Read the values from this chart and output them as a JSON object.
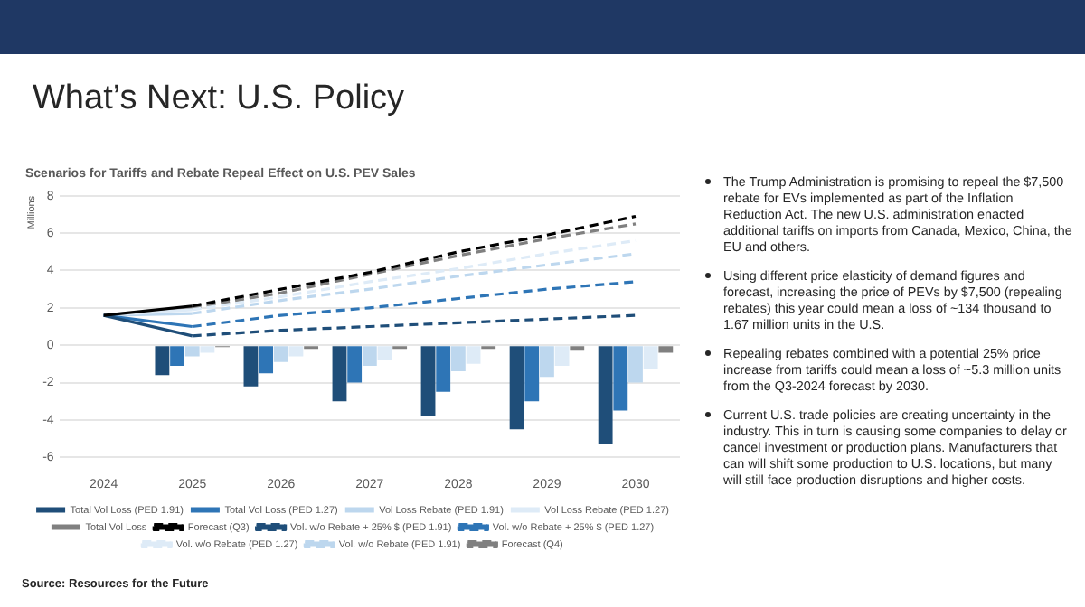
{
  "chart_data": {
    "type": "bar",
    "title": "What’s Next: U.S. Policy",
    "subtitle": "Scenarios for Tariffs and Rebate Repeal Effect on U.S. PEV Sales",
    "ylabel": "Millions",
    "categories": [
      "2024",
      "2025",
      "2026",
      "2027",
      "2028",
      "2029",
      "2030"
    ],
    "series": [
      {
        "name": "Total Vol Loss (PED 1.91)",
        "color": "#1f4e79",
        "values": [
          null,
          -1.6,
          -2.2,
          -3.0,
          -3.8,
          -4.5,
          -5.3
        ]
      },
      {
        "name": "Total Vol Loss (PED 1.27)",
        "color": "#2e75b6",
        "values": [
          null,
          -1.1,
          -1.5,
          -2.0,
          -2.5,
          -3.0,
          -3.5
        ]
      },
      {
        "name": "Vol Loss Rebate (PED 1.91)",
        "color": "#bdd7ee",
        "values": [
          null,
          -0.6,
          -0.9,
          -1.1,
          -1.4,
          -1.7,
          -2.0
        ]
      },
      {
        "name": "Vol Loss Rebate (PED 1.27)",
        "color": "#deebf7",
        "values": [
          null,
          -0.4,
          -0.6,
          -0.8,
          -1.0,
          -1.1,
          -1.3
        ]
      },
      {
        "name": "Total Vol Loss",
        "color": "#808080",
        "values": [
          null,
          -0.1,
          -0.2,
          -0.2,
          -0.2,
          -0.3,
          -0.4
        ]
      },
      {
        "name": "Forecast (Q3)",
        "type": "line",
        "line_style": "dashed",
        "color": "#000000",
        "values": [
          1.6,
          2.1,
          3.0,
          3.9,
          5.0,
          5.9,
          6.9
        ]
      },
      {
        "name": "Vol. w/o Rebate + 25% $ (PED 1.91)",
        "type": "line",
        "line_style": "dashed",
        "color": "#1f4e79",
        "values": [
          1.6,
          0.5,
          0.8,
          1.0,
          1.2,
          1.4,
          1.6
        ]
      },
      {
        "name": "Vol. w/o Rebate + 25% $ (PED 1.27)",
        "type": "line",
        "line_style": "dashed",
        "color": "#2e75b6",
        "values": [
          1.6,
          1.0,
          1.6,
          2.0,
          2.5,
          3.0,
          3.4
        ]
      },
      {
        "name": "Vol. w/o Rebate (PED 1.27)",
        "type": "line",
        "line_style": "dashed",
        "color": "#deebf7",
        "values": [
          1.6,
          1.9,
          2.6,
          3.4,
          4.1,
          4.9,
          5.6
        ]
      },
      {
        "name": "Vol. w/o Rebate (PED 1.91)",
        "type": "line",
        "line_style": "dashed",
        "color": "#bdd7ee",
        "values": [
          1.6,
          1.7,
          2.4,
          3.0,
          3.7,
          4.3,
          4.9
        ]
      },
      {
        "name": "Forecast (Q4)",
        "type": "line",
        "line_style": "dashed",
        "color": "#808080",
        "values": [
          1.6,
          2.0,
          2.8,
          3.8,
          4.8,
          5.7,
          6.5
        ]
      }
    ],
    "ylim": [
      -6,
      8
    ],
    "yticks": [
      -6,
      -4,
      -2,
      0,
      2,
      4,
      6,
      8
    ],
    "grid": "y",
    "legend": "bottom",
    "marker": "none",
    "annotations": [
      "The Trump Administration is promising to repeal the $7,500 rebate for EVs implemented as part of the Inflation Reduction Act. The new U.S. administration enacted additional tariffs on imports from Canada, Mexico, China, the EU and others.",
      "Using different price elasticity of demand figures and forecast, increasing the price of PEVs by $7,500 (repealing rebates) this year could mean a loss of ~134 thousand to 1.67 million units in the U.S.",
      "Repealing rebates combined with a potential 25% price increase from tariffs could mean a loss of ~5.3 million units from the Q3-2024 forecast by 2030.",
      "Current U.S. trade policies are creating uncertainty in the industry. This in turn is causing some companies to delay or cancel investment or production plans. Manufacturers that can will shift some production to U.S. locations, but many will still face production disruptions and higher costs.",
      "Source: Resources for the Future"
    ]
  }
}
